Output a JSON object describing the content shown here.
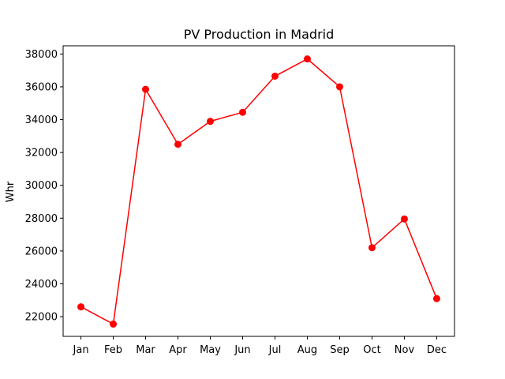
{
  "chart_data": {
    "type": "line",
    "title": "PV Production in Madrid",
    "xlabel": "",
    "ylabel": "Whr",
    "categories": [
      "Jan",
      "Feb",
      "Mar",
      "Apr",
      "May",
      "Jun",
      "Jul",
      "Aug",
      "Sep",
      "Oct",
      "Nov",
      "Dec"
    ],
    "series": [
      {
        "values": [
          22600,
          21550,
          35850,
          32500,
          33900,
          34450,
          36650,
          37700,
          36000,
          26200,
          27950,
          23100
        ],
        "color": "#ff0000",
        "marker": "circle"
      }
    ],
    "ylim": [
      20800,
      38500
    ],
    "yticks": [
      22000,
      24000,
      26000,
      28000,
      30000,
      32000,
      34000,
      36000,
      38000
    ],
    "grid": false,
    "legend": "none"
  }
}
